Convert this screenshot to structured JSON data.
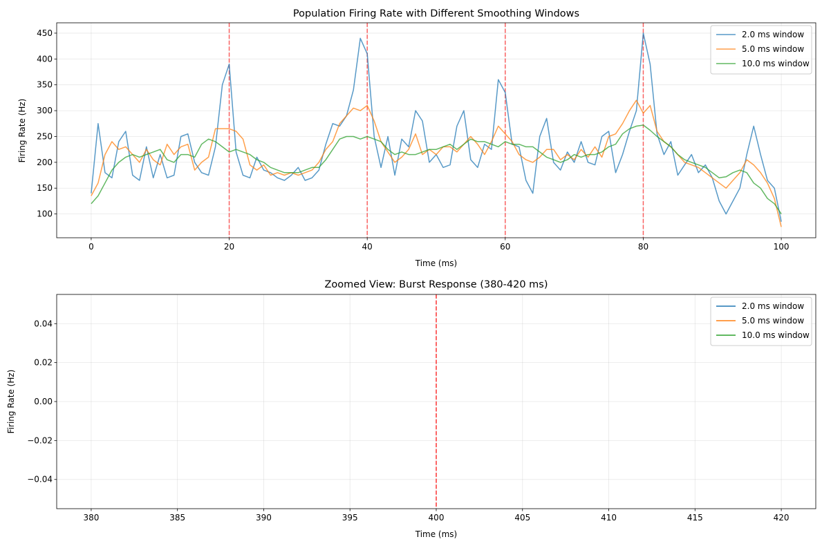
{
  "chart_data": [
    {
      "type": "line",
      "title": "Population Firing Rate with Different Smoothing Windows",
      "xlabel": "Time (ms)",
      "ylabel": "Firing Rate (Hz)",
      "xlim": [
        -5,
        105
      ],
      "ylim": [
        54,
        470
      ],
      "xticks": [
        0,
        20,
        40,
        60,
        80,
        100
      ],
      "yticks": [
        100,
        150,
        200,
        250,
        300,
        350,
        400,
        450
      ],
      "grid": true,
      "legend_position": "top-right",
      "stimulus_lines": [
        20,
        40,
        60,
        80
      ],
      "stimulus_color": "#ff0000",
      "series": [
        {
          "name": "2.0 ms window",
          "color": "#1f77b4",
          "x": [
            0,
            1,
            2,
            3,
            4,
            5,
            6,
            7,
            8,
            9,
            10,
            11,
            12,
            13,
            14,
            15,
            16,
            17,
            18,
            19,
            20,
            21,
            22,
            23,
            24,
            25,
            26,
            27,
            28,
            29,
            30,
            31,
            32,
            33,
            34,
            35,
            36,
            37,
            38,
            39,
            40,
            41,
            42,
            43,
            44,
            45,
            46,
            47,
            48,
            49,
            50,
            51,
            52,
            53,
            54,
            55,
            56,
            57,
            58,
            59,
            60,
            61,
            62,
            63,
            64,
            65,
            66,
            67,
            68,
            69,
            70,
            71,
            72,
            73,
            74,
            75,
            76,
            77,
            78,
            79,
            80,
            81,
            82,
            83,
            84,
            85,
            86,
            87,
            88,
            89,
            90,
            91,
            92,
            93,
            94,
            95,
            96,
            97,
            98,
            99,
            100
          ],
          "values": [
            140,
            275,
            180,
            170,
            240,
            260,
            175,
            165,
            230,
            170,
            215,
            170,
            175,
            250,
            255,
            200,
            180,
            175,
            230,
            350,
            390,
            220,
            175,
            170,
            210,
            185,
            180,
            170,
            165,
            175,
            190,
            165,
            170,
            185,
            235,
            275,
            270,
            290,
            340,
            440,
            410,
            250,
            190,
            250,
            175,
            245,
            230,
            300,
            280,
            200,
            215,
            190,
            195,
            270,
            300,
            205,
            190,
            235,
            225,
            360,
            335,
            235,
            230,
            165,
            140,
            250,
            285,
            200,
            185,
            220,
            200,
            240,
            200,
            195,
            250,
            260,
            180,
            215,
            260,
            300,
            450,
            390,
            255,
            215,
            240,
            175,
            195,
            215,
            180,
            195,
            170,
            125,
            100,
            125,
            150,
            215,
            270,
            215,
            165,
            150,
            85
          ]
        },
        {
          "name": "5.0 ms window",
          "color": "#ff7f0e",
          "x": [
            0,
            1,
            2,
            3,
            4,
            5,
            6,
            7,
            8,
            9,
            10,
            11,
            12,
            13,
            14,
            15,
            16,
            17,
            18,
            19,
            20,
            21,
            22,
            23,
            24,
            25,
            26,
            27,
            28,
            29,
            30,
            31,
            32,
            33,
            34,
            35,
            36,
            37,
            38,
            39,
            40,
            41,
            42,
            43,
            44,
            45,
            46,
            47,
            48,
            49,
            50,
            51,
            52,
            53,
            54,
            55,
            56,
            57,
            58,
            59,
            60,
            61,
            62,
            63,
            64,
            65,
            66,
            67,
            68,
            69,
            70,
            71,
            72,
            73,
            74,
            75,
            76,
            77,
            78,
            79,
            80,
            81,
            82,
            83,
            84,
            85,
            86,
            87,
            88,
            89,
            90,
            91,
            92,
            93,
            94,
            95,
            96,
            97,
            98,
            99,
            100
          ],
          "values": [
            135,
            160,
            215,
            240,
            225,
            230,
            215,
            200,
            225,
            205,
            195,
            235,
            215,
            230,
            235,
            185,
            200,
            210,
            265,
            265,
            265,
            260,
            245,
            195,
            185,
            195,
            175,
            180,
            175,
            180,
            175,
            180,
            185,
            200,
            225,
            240,
            275,
            290,
            305,
            300,
            310,
            280,
            240,
            220,
            200,
            210,
            225,
            255,
            215,
            225,
            215,
            230,
            230,
            220,
            235,
            250,
            235,
            215,
            240,
            270,
            255,
            240,
            215,
            205,
            200,
            210,
            225,
            225,
            205,
            215,
            205,
            225,
            210,
            230,
            210,
            250,
            255,
            275,
            300,
            320,
            295,
            310,
            260,
            240,
            230,
            215,
            200,
            195,
            190,
            180,
            170,
            160,
            150,
            165,
            180,
            205,
            195,
            180,
            160,
            130,
            75
          ]
        },
        {
          "name": "10.0 ms window",
          "color": "#2ca02c",
          "x": [
            0,
            1,
            2,
            3,
            4,
            5,
            6,
            7,
            8,
            9,
            10,
            11,
            12,
            13,
            14,
            15,
            16,
            17,
            18,
            19,
            20,
            21,
            22,
            23,
            24,
            25,
            26,
            27,
            28,
            29,
            30,
            31,
            32,
            33,
            34,
            35,
            36,
            37,
            38,
            39,
            40,
            41,
            42,
            43,
            44,
            45,
            46,
            47,
            48,
            49,
            50,
            51,
            52,
            53,
            54,
            55,
            56,
            57,
            58,
            59,
            60,
            61,
            62,
            63,
            64,
            65,
            66,
            67,
            68,
            69,
            70,
            71,
            72,
            73,
            74,
            75,
            76,
            77,
            78,
            79,
            80,
            81,
            82,
            83,
            84,
            85,
            86,
            87,
            88,
            89,
            90,
            91,
            92,
            93,
            94,
            95,
            96,
            97,
            98,
            99,
            100
          ],
          "values": [
            120,
            135,
            160,
            185,
            200,
            210,
            215,
            210,
            215,
            220,
            225,
            205,
            200,
            215,
            215,
            210,
            235,
            245,
            240,
            230,
            220,
            225,
            220,
            215,
            205,
            200,
            190,
            185,
            180,
            180,
            180,
            185,
            190,
            190,
            205,
            225,
            245,
            250,
            250,
            245,
            250,
            245,
            240,
            225,
            215,
            220,
            215,
            215,
            220,
            225,
            225,
            230,
            235,
            225,
            235,
            245,
            240,
            240,
            235,
            230,
            240,
            235,
            235,
            230,
            230,
            220,
            210,
            205,
            200,
            205,
            215,
            210,
            215,
            215,
            220,
            230,
            235,
            255,
            265,
            270,
            272,
            262,
            250,
            240,
            230,
            215,
            205,
            200,
            195,
            190,
            180,
            170,
            172,
            180,
            185,
            180,
            160,
            150,
            130,
            120,
            100
          ]
        }
      ]
    },
    {
      "type": "line",
      "title": "Zoomed View: Burst Response (380-420 ms)",
      "xlabel": "Time (ms)",
      "ylabel": "Firing Rate (Hz)",
      "xlim": [
        378,
        422
      ],
      "ylim": [
        -0.055,
        0.055
      ],
      "xticks": [
        380,
        385,
        390,
        395,
        400,
        405,
        410,
        415,
        420
      ],
      "yticks": [
        -0.04,
        -0.02,
        0.0,
        0.02,
        0.04
      ],
      "ytick_labels": [
        "−0.04",
        "−0.02",
        "0.00",
        "0.02",
        "0.04"
      ],
      "grid": true,
      "legend_position": "top-right",
      "stimulus_lines": [
        400
      ],
      "stimulus_color": "#ff0000",
      "series": [
        {
          "name": "2.0 ms window",
          "color": "#1f77b4",
          "x": [],
          "values": []
        },
        {
          "name": "5.0 ms window",
          "color": "#ff7f0e",
          "x": [],
          "values": []
        },
        {
          "name": "10.0 ms window",
          "color": "#2ca02c",
          "x": [],
          "values": []
        }
      ]
    }
  ]
}
